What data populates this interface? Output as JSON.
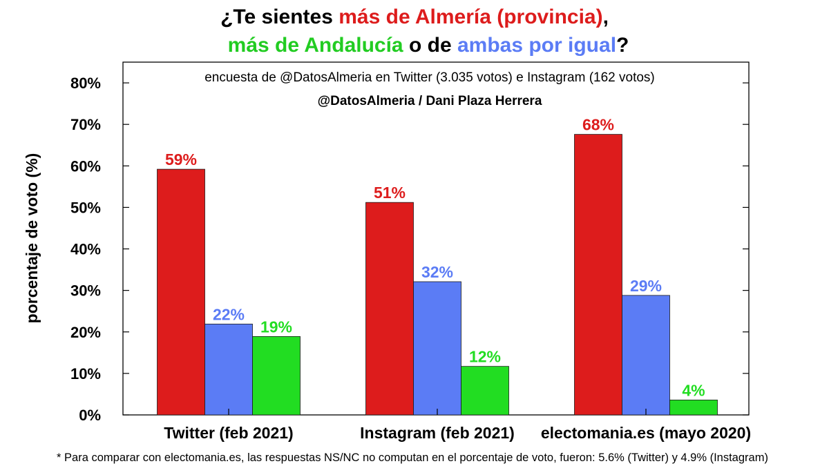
{
  "title": {
    "line1": [
      {
        "text": "¿Te sientes ",
        "color": "#000000"
      },
      {
        "text": "más de Almería (provincia)",
        "color": "#dd1c1c"
      },
      {
        "text": ",",
        "color": "#000000"
      }
    ],
    "line2": [
      {
        "text": "más de Andalucía",
        "color": "#22cc22"
      },
      {
        "text": " o de ",
        "color": "#000000"
      },
      {
        "text": "ambas por igual",
        "color": "#5b7cf5"
      },
      {
        "text": "?",
        "color": "#000000"
      }
    ]
  },
  "subtitle": "encuesta de @DatosAlmeria en Twitter (3.035 votos) e Instagram (162 votos)",
  "credit": "@DatosAlmeria / Dani Plaza Herrera",
  "footnote": "* Para comparar con electomania.es, las respuestas NS/NC no computan en el porcentaje de voto, fueron: 5.6% (Twitter) y 4.9% (Instagram)",
  "colors": {
    "almeria": "#dd1c1c",
    "ambas": "#5b7cf5",
    "andalucia": "#22dd22"
  },
  "chart_data": {
    "type": "bar",
    "categories": [
      "Twitter (feb 2021)",
      "Instagram (feb 2021)",
      "electomania.es (mayo 2020)"
    ],
    "series": [
      {
        "values": [
          59.2,
          51.2,
          67.6
        ],
        "labels": [
          "59%",
          "51%",
          "68%"
        ],
        "color": "#dd1c1c"
      },
      {
        "values": [
          21.9,
          32.1,
          28.8
        ],
        "labels": [
          "22%",
          "32%",
          "29%"
        ],
        "color": "#5b7cf5"
      },
      {
        "values": [
          18.9,
          11.7,
          3.6
        ],
        "labels": [
          "19%",
          "12%",
          "4%"
        ],
        "color": "#22dd22"
      }
    ],
    "ylabel": "porcentaje de voto (%)",
    "xlabel": "",
    "ylim": [
      0,
      85
    ],
    "yticks": [
      0,
      10,
      20,
      30,
      40,
      50,
      60,
      70,
      80
    ],
    "ytick_labels": [
      "0%",
      "10%",
      "20%",
      "30%",
      "40%",
      "50%",
      "60%",
      "70%",
      "80%"
    ],
    "grid": false
  }
}
